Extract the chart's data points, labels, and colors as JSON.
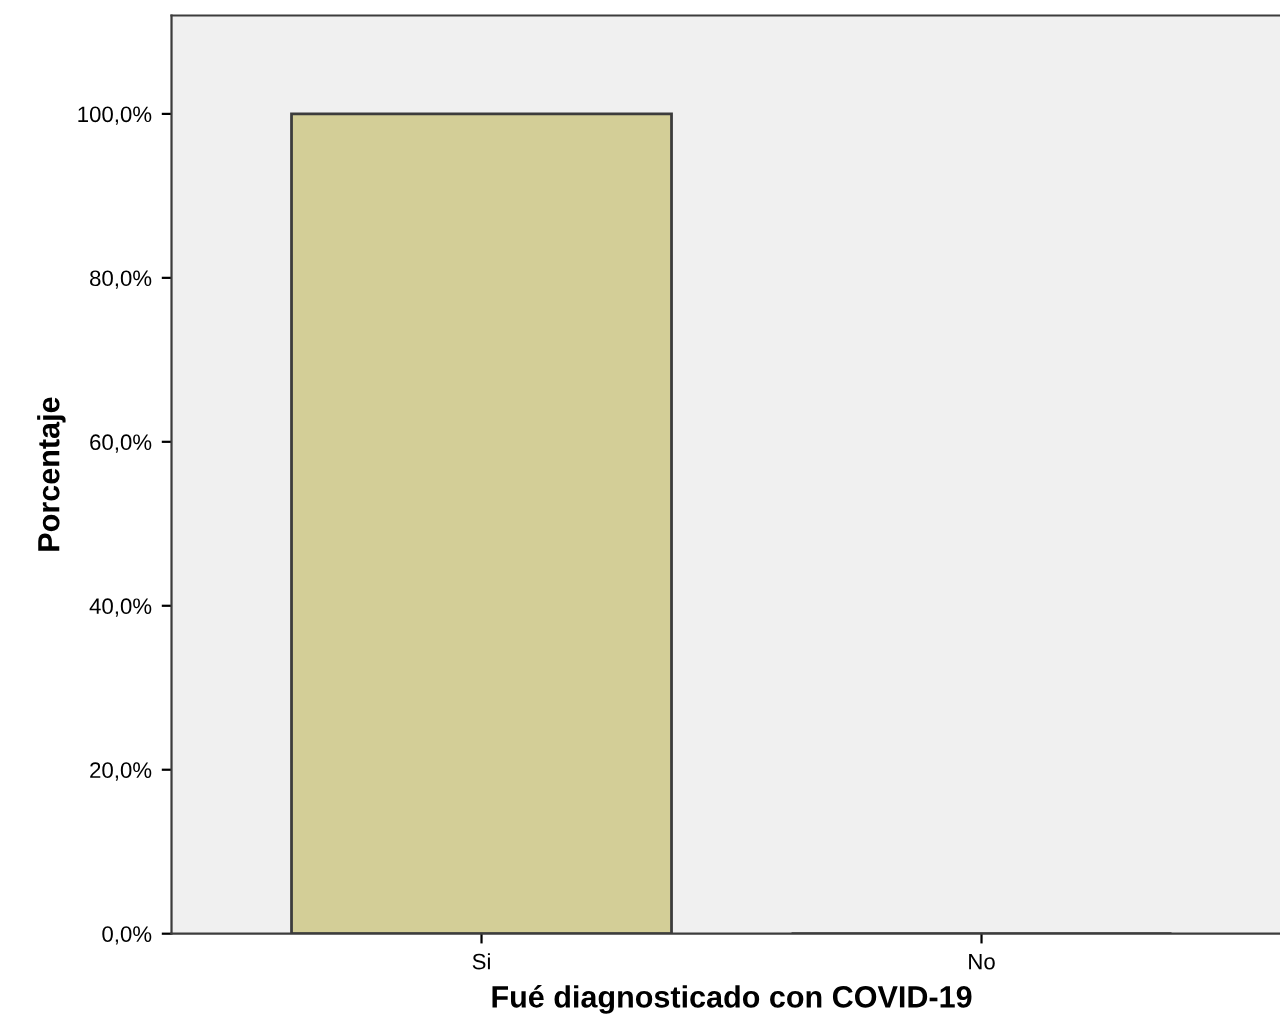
{
  "chart_data": {
    "type": "bar",
    "xlabel": "Fué diagnosticado con COVID-19",
    "ylabel": "Porcentaje",
    "categories": [
      "Si",
      "No"
    ],
    "values": [
      100,
      0
    ],
    "color": "#d3ce97",
    "ylim": [
      0,
      112
    ],
    "yticks": [
      {
        "value": 0,
        "label": "0,0%"
      },
      {
        "value": 20,
        "label": "20,0%"
      },
      {
        "value": 40,
        "label": "40,0%"
      },
      {
        "value": 60,
        "label": "60,0%"
      },
      {
        "value": 80,
        "label": "80,0%"
      },
      {
        "value": 100,
        "label": "100,0%"
      }
    ],
    "grid": false,
    "legend": false
  }
}
